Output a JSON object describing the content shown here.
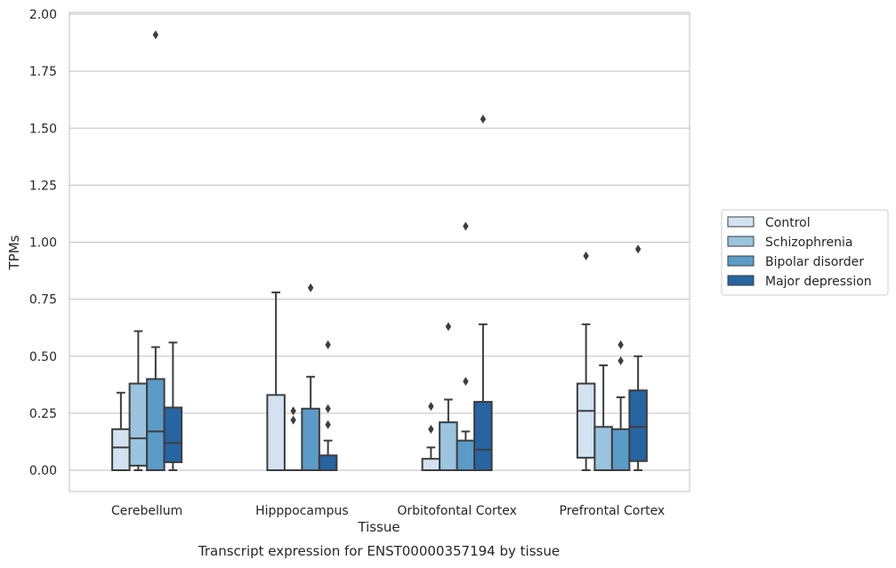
{
  "chart_data": {
    "type": "boxplot",
    "title": "",
    "xlabel": "Tissue",
    "ylabel": "TPMs",
    "caption": "Transcript expression for ENST00000357194 by tissue",
    "ylim": [
      -0.09,
      2.0
    ],
    "yticks": [
      "0.00",
      "0.25",
      "0.50",
      "0.75",
      "1.00",
      "1.25",
      "1.50",
      "1.75",
      "2.00"
    ],
    "grid": "horizontal",
    "legend_position": "right",
    "categories": [
      "Cerebellum",
      "Hipppocampus",
      "Orbitofontal Cortex",
      "Prefrontal Cortex"
    ],
    "series": [
      {
        "name": "Control",
        "color": "#d2e2f1",
        "boxes": [
          {
            "whislo": 0.0,
            "q1": 0.0,
            "med": 0.1,
            "q3": 0.18,
            "whishi": 0.34,
            "fliers": []
          },
          {
            "whislo": 0.0,
            "q1": 0.0,
            "med": 0.0,
            "q3": 0.33,
            "whishi": 0.78,
            "fliers": []
          },
          {
            "whislo": 0.0,
            "q1": 0.0,
            "med": 0.0,
            "q3": 0.05,
            "whishi": 0.1,
            "fliers": [
              0.18,
              0.28
            ]
          },
          {
            "whislo": 0.0,
            "q1": 0.055,
            "med": 0.26,
            "q3": 0.38,
            "whishi": 0.64,
            "fliers": [
              0.94
            ]
          }
        ]
      },
      {
        "name": "Schizophrenia",
        "color": "#9bc4de",
        "boxes": [
          {
            "whislo": 0.0,
            "q1": 0.02,
            "med": 0.14,
            "q3": 0.38,
            "whishi": 0.61,
            "fliers": []
          },
          {
            "whislo": 0.0,
            "q1": 0.0,
            "med": 0.0,
            "q3": 0.0,
            "whishi": 0.0,
            "fliers": [
              0.22,
              0.26
            ]
          },
          {
            "whislo": 0.0,
            "q1": 0.0,
            "med": 0.0,
            "q3": 0.21,
            "whishi": 0.31,
            "fliers": [
              0.63
            ]
          },
          {
            "whislo": 0.0,
            "q1": 0.0,
            "med": 0.0,
            "q3": 0.19,
            "whishi": 0.46,
            "fliers": []
          }
        ]
      },
      {
        "name": "Bipolar disorder",
        "color": "#5b9bc8",
        "boxes": [
          {
            "whislo": 0.0,
            "q1": 0.0,
            "med": 0.17,
            "q3": 0.4,
            "whishi": 0.54,
            "fliers": [
              1.91
            ]
          },
          {
            "whislo": 0.0,
            "q1": 0.0,
            "med": 0.0,
            "q3": 0.27,
            "whishi": 0.41,
            "fliers": [
              0.8
            ]
          },
          {
            "whislo": 0.0,
            "q1": 0.0,
            "med": 0.0,
            "q3": 0.13,
            "whishi": 0.17,
            "fliers": [
              0.39,
              1.07
            ]
          },
          {
            "whislo": 0.0,
            "q1": 0.0,
            "med": 0.0,
            "q3": 0.18,
            "whishi": 0.32,
            "fliers": [
              0.48,
              0.55
            ]
          }
        ]
      },
      {
        "name": "Major depression",
        "color": "#2764a2",
        "boxes": [
          {
            "whislo": 0.0,
            "q1": 0.035,
            "med": 0.12,
            "q3": 0.275,
            "whishi": 0.56,
            "fliers": []
          },
          {
            "whislo": 0.0,
            "q1": 0.0,
            "med": 0.0,
            "q3": 0.065,
            "whishi": 0.13,
            "fliers": [
              0.2,
              0.27,
              0.55
            ]
          },
          {
            "whislo": 0.0,
            "q1": 0.0,
            "med": 0.09,
            "q3": 0.3,
            "whishi": 0.64,
            "fliers": [
              1.54
            ]
          },
          {
            "whislo": 0.0,
            "q1": 0.04,
            "med": 0.19,
            "q3": 0.35,
            "whishi": 0.5,
            "fliers": [
              0.97
            ]
          }
        ]
      }
    ]
  }
}
